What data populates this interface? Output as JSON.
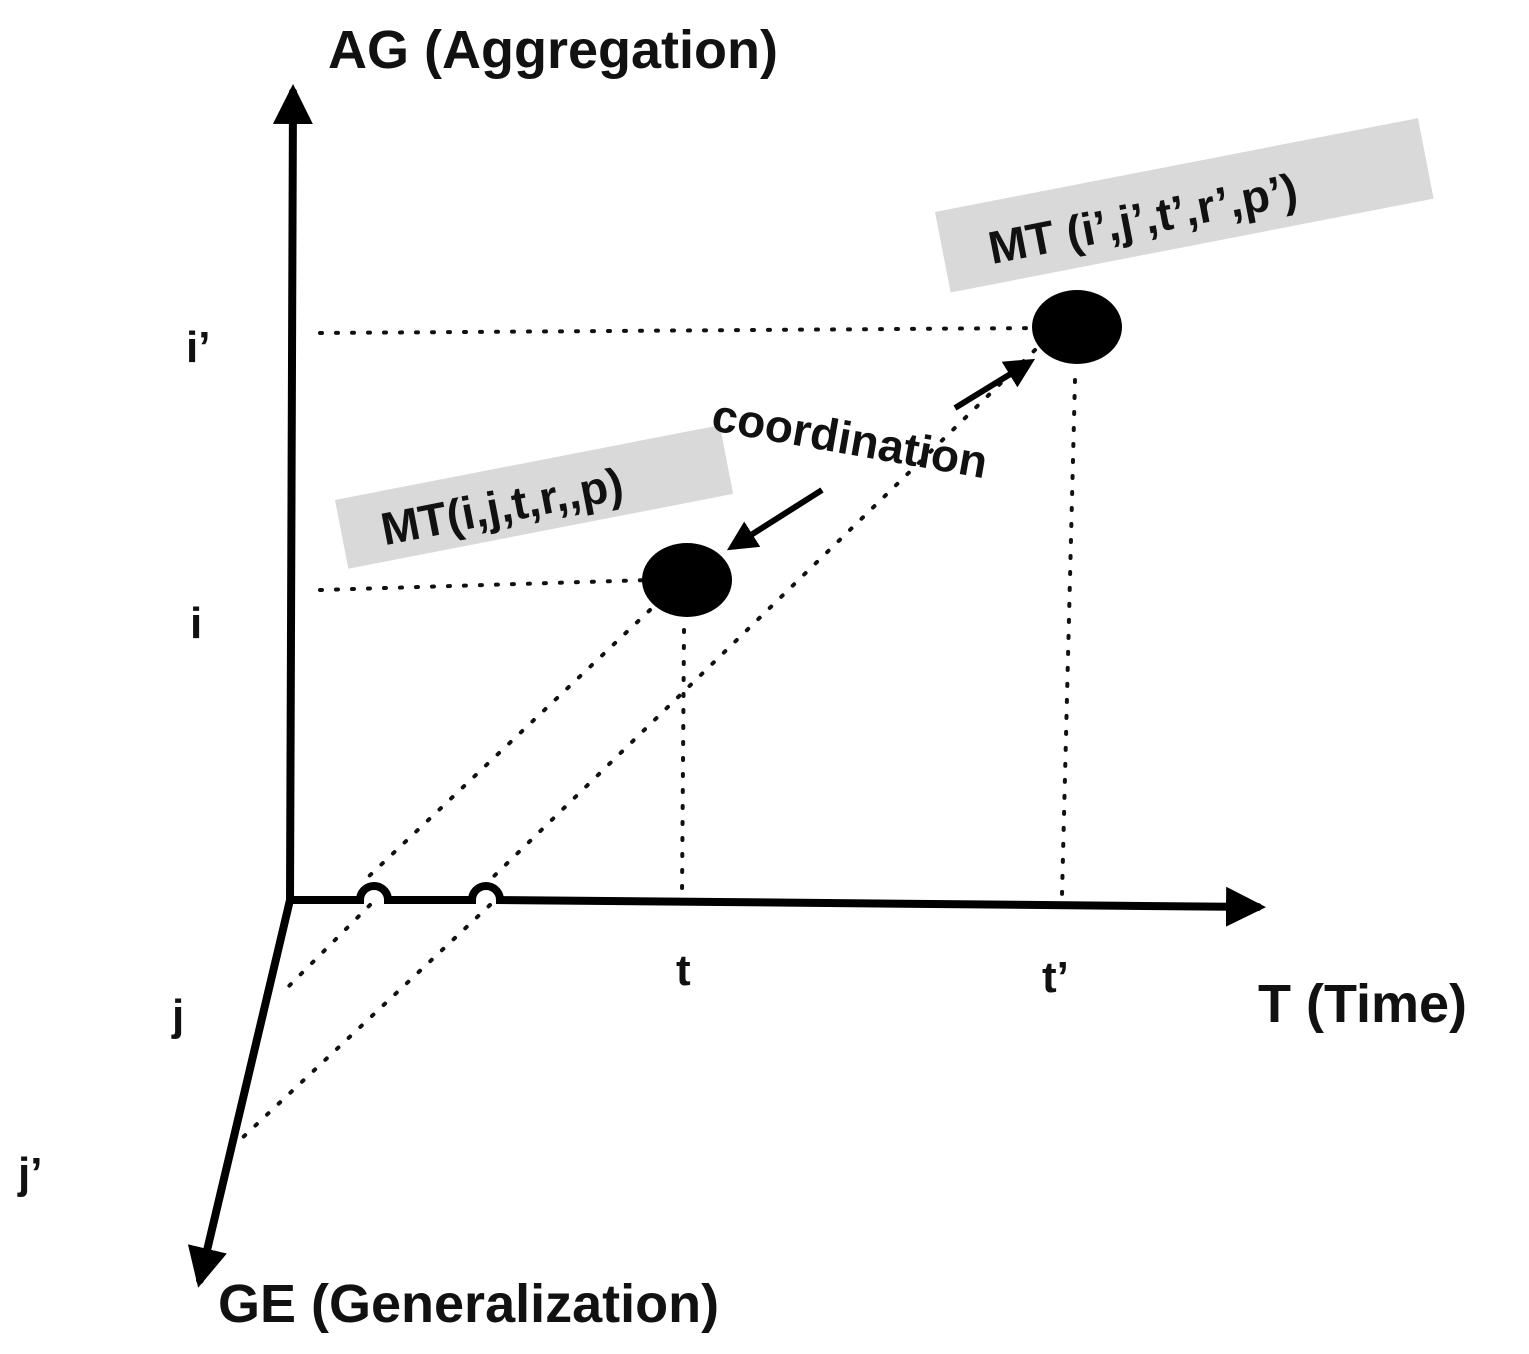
{
  "axes": {
    "aggregation": "AG (Aggregation)",
    "time": "T (Time)",
    "generalization": "GE (Generalization)"
  },
  "ticks": {
    "i": "i",
    "i_prime": "i’",
    "t": "t",
    "t_prime": "t’",
    "j": "j",
    "j_prime": "j’"
  },
  "points": {
    "first": "MT(i,j,t,r,,p)",
    "second": "MT (i’,j’,t’,r’,p’)"
  },
  "relation": {
    "label": "coordination"
  },
  "colors": {
    "label_box": "#d9d9d9",
    "ink": "#000000"
  }
}
